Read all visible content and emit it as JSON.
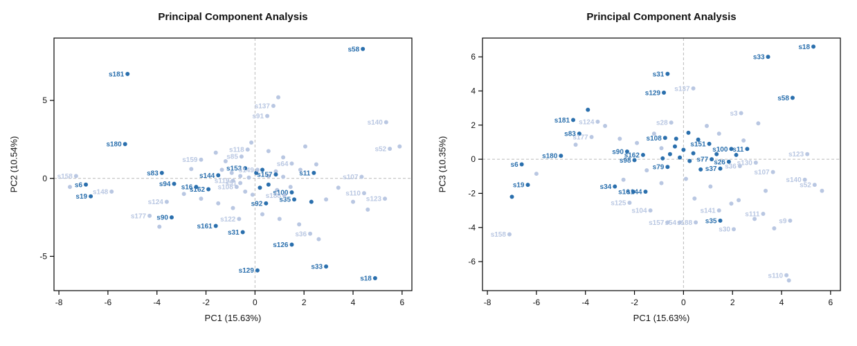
{
  "colors": {
    "dark": "#2a6fad",
    "light": "#b9c7e2",
    "ref": "#b9b9b9",
    "axis": "#000000"
  },
  "charts": [
    {
      "type": "scatter",
      "title": "Principal Component Analysis",
      "xlabel": "PC1 (15.63%)",
      "ylabel": "PC2 (10.54%)",
      "xlim": [
        -8.2,
        6.4
      ],
      "ylim": [
        -7.2,
        9.0
      ],
      "xticks": [
        -8,
        -6,
        -4,
        -2,
        0,
        2,
        4,
        6
      ],
      "yticks": [
        -5,
        0,
        5
      ],
      "grid": false,
      "reference_lines": {
        "x": 0,
        "y": 0,
        "style": "dashed"
      },
      "points": [
        {
          "l": "s58",
          "x": 4.4,
          "y": 8.3,
          "g": "d"
        },
        {
          "l": "s181",
          "x": -5.2,
          "y": 6.7,
          "g": "d"
        },
        {
          "l": "s137",
          "x": 0.75,
          "y": 4.65,
          "g": "l"
        },
        {
          "l": "s91",
          "x": 0.5,
          "y": 4.0,
          "g": "l"
        },
        {
          "l": "s140",
          "x": 5.35,
          "y": 3.6,
          "g": "l"
        },
        {
          "l": "s180",
          "x": -5.3,
          "y": 2.2,
          "g": "d"
        },
        {
          "l": "s118",
          "x": -0.3,
          "y": 1.85,
          "g": "l"
        },
        {
          "l": "s85",
          "x": -0.55,
          "y": 1.4,
          "g": "l"
        },
        {
          "l": "s159",
          "x": -2.2,
          "y": 1.2,
          "g": "l"
        },
        {
          "l": "s52",
          "x": 5.5,
          "y": 1.9,
          "g": "l"
        },
        {
          "l": "s64",
          "x": 1.5,
          "y": 0.95,
          "g": "l"
        },
        {
          "l": "s153",
          "x": -0.4,
          "y": 0.65,
          "g": "d"
        },
        {
          "l": "s149",
          "x": 0.1,
          "y": 0.55,
          "g": "l"
        },
        {
          "l": "s83",
          "x": -3.8,
          "y": 0.35,
          "g": "d"
        },
        {
          "l": "s144",
          "x": -1.5,
          "y": 0.2,
          "g": "d"
        },
        {
          "l": "s157",
          "x": 0.85,
          "y": 0.25,
          "g": "d"
        },
        {
          "l": "s11",
          "x": 2.4,
          "y": 0.35,
          "g": "d"
        },
        {
          "l": "s107",
          "x": 4.35,
          "y": 0.1,
          "g": "l"
        },
        {
          "l": "s158",
          "x": -7.3,
          "y": 0.15,
          "g": "l"
        },
        {
          "l": "s6",
          "x": -6.9,
          "y": -0.4,
          "g": "d"
        },
        {
          "l": "s19",
          "x": -6.7,
          "y": -1.15,
          "g": "d"
        },
        {
          "l": "s148",
          "x": -5.85,
          "y": -0.85,
          "g": "l"
        },
        {
          "l": "s94",
          "x": -3.3,
          "y": -0.35,
          "g": "d"
        },
        {
          "l": "s16",
          "x": -2.4,
          "y": -0.55,
          "g": "d"
        },
        {
          "l": "s162",
          "x": -1.9,
          "y": -0.7,
          "g": "d"
        },
        {
          "l": "s119",
          "x": -0.9,
          "y": -0.15,
          "g": "l"
        },
        {
          "l": "s51",
          "x": -0.6,
          "y": -0.3,
          "g": "l"
        },
        {
          "l": "s108",
          "x": -0.75,
          "y": -0.55,
          "g": "l"
        },
        {
          "l": "s100",
          "x": 1.5,
          "y": -0.9,
          "g": "d"
        },
        {
          "l": "s35",
          "x": 1.6,
          "y": -1.35,
          "g": "d"
        },
        {
          "l": "s188",
          "x": 1.2,
          "y": -1.1,
          "g": "l"
        },
        {
          "l": "s110",
          "x": 4.45,
          "y": -0.95,
          "g": "l"
        },
        {
          "l": "s123",
          "x": 5.3,
          "y": -1.3,
          "g": "l"
        },
        {
          "l": "s124",
          "x": -3.6,
          "y": -1.5,
          "g": "l"
        },
        {
          "l": "s92",
          "x": 0.45,
          "y": -1.6,
          "g": "d"
        },
        {
          "l": "s177",
          "x": -4.3,
          "y": -2.4,
          "g": "l"
        },
        {
          "l": "s90",
          "x": -3.4,
          "y": -2.5,
          "g": "d"
        },
        {
          "l": "s122",
          "x": -0.65,
          "y": -2.6,
          "g": "l"
        },
        {
          "l": "s161",
          "x": -1.6,
          "y": -3.05,
          "g": "d"
        },
        {
          "l": "s31",
          "x": -0.5,
          "y": -3.45,
          "g": "d"
        },
        {
          "l": "s36",
          "x": 2.25,
          "y": -3.55,
          "g": "l"
        },
        {
          "l": "s126",
          "x": 1.5,
          "y": -4.25,
          "g": "d"
        },
        {
          "l": "s129",
          "x": 0.1,
          "y": -5.9,
          "g": "d"
        },
        {
          "l": "s33",
          "x": 2.9,
          "y": -5.65,
          "g": "d"
        },
        {
          "l": "s18",
          "x": 4.9,
          "y": -6.4,
          "g": "d"
        }
      ],
      "extra": [
        [
          0.95,
          5.2,
          "l"
        ],
        [
          2.05,
          2.05,
          "l"
        ],
        [
          -1.6,
          1.65,
          "l"
        ],
        [
          -1.2,
          1.1,
          "l"
        ],
        [
          -0.15,
          2.3,
          "l"
        ],
        [
          0.55,
          1.75,
          "l"
        ],
        [
          1.15,
          1.35,
          "l"
        ],
        [
          -2.6,
          0.6,
          "l"
        ],
        [
          -1.35,
          0.55,
          "l"
        ],
        [
          -0.95,
          0.35,
          "l"
        ],
        [
          -0.6,
          0.15,
          "l"
        ],
        [
          -0.25,
          0.05,
          "l"
        ],
        [
          0.05,
          0.35,
          "d"
        ],
        [
          0.3,
          0.55,
          "d"
        ],
        [
          0.55,
          0.15,
          "l"
        ],
        [
          0.85,
          0.45,
          "l"
        ],
        [
          1.15,
          0.1,
          "l"
        ],
        [
          1.85,
          0.55,
          "l"
        ],
        [
          2.5,
          0.9,
          "l"
        ],
        [
          -0.4,
          -0.85,
          "l"
        ],
        [
          -0.1,
          -1.05,
          "l"
        ],
        [
          0.2,
          -0.6,
          "d"
        ],
        [
          0.55,
          -0.4,
          "d"
        ],
        [
          0.9,
          -0.75,
          "l"
        ],
        [
          1.45,
          -0.55,
          "l"
        ],
        [
          2.3,
          -1.5,
          "d"
        ],
        [
          2.9,
          -1.35,
          "l"
        ],
        [
          3.4,
          -0.6,
          "l"
        ],
        [
          4.0,
          -1.5,
          "l"
        ],
        [
          4.6,
          -2.0,
          "l"
        ],
        [
          -2.9,
          -1.0,
          "l"
        ],
        [
          -2.2,
          -1.3,
          "l"
        ],
        [
          -1.5,
          -1.6,
          "l"
        ],
        [
          -0.9,
          -1.9,
          "l"
        ],
        [
          0.3,
          -2.3,
          "l"
        ],
        [
          1.0,
          -2.6,
          "l"
        ],
        [
          1.8,
          -2.95,
          "l"
        ],
        [
          2.6,
          -3.9,
          "l"
        ],
        [
          -3.9,
          -3.1,
          "l"
        ],
        [
          5.9,
          2.05,
          "l"
        ],
        [
          -7.55,
          -0.55,
          "l"
        ]
      ]
    },
    {
      "type": "scatter",
      "title": "Principal Component Analysis",
      "xlabel": "PC1 (15.63%)",
      "ylabel": "PC3 (10.35%)",
      "xlim": [
        -8.2,
        6.4
      ],
      "ylim": [
        -7.7,
        7.1
      ],
      "xticks": [
        -8,
        -6,
        -4,
        -2,
        0,
        2,
        4,
        6
      ],
      "yticks": [
        -6,
        -4,
        -2,
        0,
        2,
        4,
        6
      ],
      "grid": false,
      "reference_lines": {
        "x": 0,
        "y": 0,
        "style": "dashed"
      },
      "points": [
        {
          "l": "s18",
          "x": 5.3,
          "y": 6.6,
          "g": "d"
        },
        {
          "l": "s33",
          "x": 3.45,
          "y": 6.0,
          "g": "d"
        },
        {
          "l": "s31",
          "x": -0.65,
          "y": 5.0,
          "g": "d"
        },
        {
          "l": "s137",
          "x": 0.4,
          "y": 4.15,
          "g": "l"
        },
        {
          "l": "s129",
          "x": -0.8,
          "y": 3.9,
          "g": "d"
        },
        {
          "l": "s58",
          "x": 4.45,
          "y": 3.6,
          "g": "d"
        },
        {
          "l": "s3",
          "x": 2.35,
          "y": 2.7,
          "g": "l"
        },
        {
          "l": "s181",
          "x": -4.5,
          "y": 2.3,
          "g": "d"
        },
        {
          "l": "s124",
          "x": -3.5,
          "y": 2.2,
          "g": "l"
        },
        {
          "l": "s28",
          "x": -0.5,
          "y": 2.15,
          "g": "l"
        },
        {
          "l": "s83",
          "x": -4.25,
          "y": 1.5,
          "g": "d"
        },
        {
          "l": "s177",
          "x": -3.75,
          "y": 1.3,
          "g": "l"
        },
        {
          "l": "s108",
          "x": -0.75,
          "y": 1.25,
          "g": "d"
        },
        {
          "l": "s151",
          "x": 1.05,
          "y": 0.9,
          "g": "d"
        },
        {
          "l": "s100",
          "x": 1.95,
          "y": 0.6,
          "g": "d"
        },
        {
          "l": "s11",
          "x": 2.6,
          "y": 0.6,
          "g": "d"
        },
        {
          "l": "s90",
          "x": -2.3,
          "y": 0.45,
          "g": "d"
        },
        {
          "l": "s162",
          "x": -1.65,
          "y": 0.25,
          "g": "d"
        },
        {
          "l": "s180",
          "x": -5.0,
          "y": 0.2,
          "g": "d"
        },
        {
          "l": "s6",
          "x": -6.6,
          "y": -0.3,
          "g": "d"
        },
        {
          "l": "s98",
          "x": -2.0,
          "y": -0.05,
          "g": "d"
        },
        {
          "l": "s77",
          "x": 1.15,
          "y": 0.0,
          "g": "d"
        },
        {
          "l": "s26",
          "x": 1.85,
          "y": -0.15,
          "g": "d"
        },
        {
          "l": "s123",
          "x": 5.05,
          "y": 0.3,
          "g": "l"
        },
        {
          "l": "s130",
          "x": 2.95,
          "y": -0.2,
          "g": "l"
        },
        {
          "l": "s107",
          "x": 3.65,
          "y": -0.75,
          "g": "l"
        },
        {
          "l": "s79",
          "x": -0.65,
          "y": -0.45,
          "g": "d"
        },
        {
          "l": "s37",
          "x": 1.5,
          "y": -0.55,
          "g": "d"
        },
        {
          "l": "s36",
          "x": 2.3,
          "y": -0.4,
          "g": "l"
        },
        {
          "l": "s140",
          "x": 4.95,
          "y": -1.2,
          "g": "l"
        },
        {
          "l": "s52",
          "x": 5.35,
          "y": -1.5,
          "g": "l"
        },
        {
          "l": "s19",
          "x": -6.35,
          "y": -1.5,
          "g": "d"
        },
        {
          "l": "s34",
          "x": -2.8,
          "y": -1.6,
          "g": "d"
        },
        {
          "l": "s16",
          "x": -2.05,
          "y": -1.9,
          "g": "d"
        },
        {
          "l": "s144",
          "x": -1.55,
          "y": -1.9,
          "g": "d"
        },
        {
          "l": "s125",
          "x": -2.2,
          "y": -2.55,
          "g": "l"
        },
        {
          "l": "s104",
          "x": -1.35,
          "y": -3.0,
          "g": "l"
        },
        {
          "l": "s141",
          "x": 1.45,
          "y": -3.0,
          "g": "l"
        },
        {
          "l": "s111",
          "x": 3.25,
          "y": -3.2,
          "g": "l"
        },
        {
          "l": "s35",
          "x": 1.5,
          "y": -3.6,
          "g": "d"
        },
        {
          "l": "s9",
          "x": 4.35,
          "y": -3.6,
          "g": "l"
        },
        {
          "l": "s157",
          "x": -0.65,
          "y": -3.7,
          "g": "l"
        },
        {
          "l": "s54",
          "x": -0.15,
          "y": -3.7,
          "g": "l"
        },
        {
          "l": "s188",
          "x": 0.5,
          "y": -3.7,
          "g": "l"
        },
        {
          "l": "s30",
          "x": 2.05,
          "y": -4.1,
          "g": "l"
        },
        {
          "l": "s158",
          "x": -7.1,
          "y": -4.4,
          "g": "l"
        },
        {
          "l": "s110",
          "x": 4.2,
          "y": -6.8,
          "g": "l"
        }
      ],
      "extra": [
        [
          -3.9,
          2.9,
          "d"
        ],
        [
          -3.2,
          1.95,
          "l"
        ],
        [
          -2.6,
          1.2,
          "l"
        ],
        [
          -1.9,
          0.95,
          "l"
        ],
        [
          -1.2,
          1.5,
          "l"
        ],
        [
          -0.9,
          0.65,
          "l"
        ],
        [
          -0.3,
          1.2,
          "d"
        ],
        [
          0.2,
          1.55,
          "d"
        ],
        [
          0.6,
          1.15,
          "d"
        ],
        [
          0.95,
          1.95,
          "l"
        ],
        [
          1.45,
          1.5,
          "l"
        ],
        [
          2.45,
          1.1,
          "l"
        ],
        [
          3.05,
          2.1,
          "l"
        ],
        [
          -0.55,
          0.3,
          "d"
        ],
        [
          -0.15,
          0.1,
          "d"
        ],
        [
          0.25,
          -0.1,
          "d"
        ],
        [
          0.7,
          -0.6,
          "d"
        ],
        [
          -1.5,
          -0.65,
          "l"
        ],
        [
          -2.45,
          -1.2,
          "l"
        ],
        [
          -0.9,
          -1.4,
          "l"
        ],
        [
          0.1,
          -1.15,
          "l"
        ],
        [
          1.1,
          -1.6,
          "l"
        ],
        [
          2.25,
          -2.4,
          "l"
        ],
        [
          3.35,
          -1.85,
          "l"
        ],
        [
          -4.4,
          0.85,
          "l"
        ],
        [
          -6.0,
          -0.85,
          "l"
        ],
        [
          5.65,
          -1.85,
          "l"
        ],
        [
          -7.0,
          -2.2,
          "d"
        ],
        [
          0.45,
          -2.3,
          "l"
        ],
        [
          1.95,
          -2.6,
          "l"
        ],
        [
          2.9,
          -3.5,
          "l"
        ],
        [
          3.7,
          -4.05,
          "l"
        ],
        [
          0.0,
          0.55,
          "d"
        ],
        [
          -0.35,
          0.75,
          "d"
        ],
        [
          0.4,
          0.35,
          "d"
        ],
        [
          -0.85,
          0.05,
          "d"
        ],
        [
          1.35,
          0.3,
          "d"
        ],
        [
          2.15,
          0.25,
          "d"
        ],
        [
          4.3,
          -7.1,
          "l"
        ]
      ]
    }
  ]
}
